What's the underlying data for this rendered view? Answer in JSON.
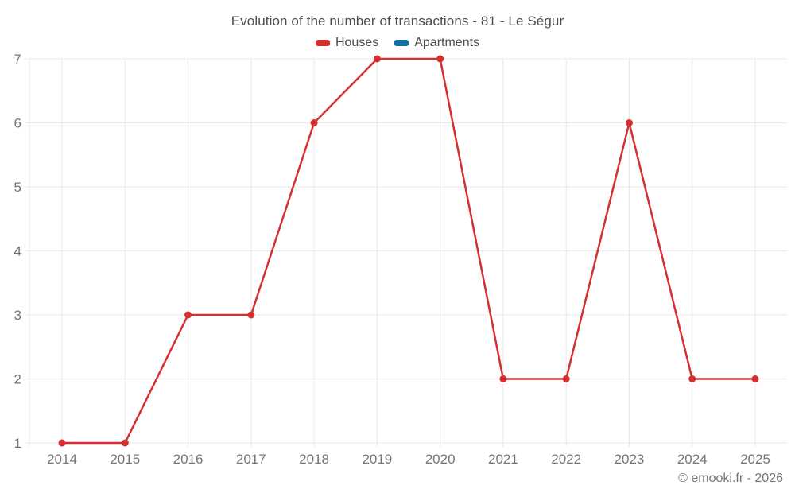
{
  "title": "Evolution of the number of transactions - 81 - Le Ségur",
  "watermark": "© emooki.fr - 2026",
  "colors": {
    "houses": "#d62f2f",
    "apartments": "#0e72a3",
    "grid": "#e8e8e8",
    "title_text": "#4c4c4c",
    "axis_text": "#757575",
    "background": "#ffffff"
  },
  "chart_data": {
    "type": "line",
    "title": "Evolution of the number of transactions - 81 - Le Ségur",
    "categories": [
      "2014",
      "2015",
      "2016",
      "2017",
      "2018",
      "2019",
      "2020",
      "2021",
      "2022",
      "2023",
      "2024",
      "2025"
    ],
    "series": [
      {
        "name": "Houses",
        "color": "#d62f2f",
        "values": [
          1,
          1,
          3,
          3,
          6,
          7,
          7,
          2,
          2,
          6,
          2,
          2
        ]
      },
      {
        "name": "Apartments",
        "color": "#0e72a3",
        "values": []
      }
    ],
    "xlabel": "",
    "ylabel": "",
    "ylim": [
      1,
      7
    ],
    "yticks": [
      1,
      2,
      3,
      4,
      5,
      6,
      7
    ],
    "grid": true,
    "legend_position": "top",
    "marker": "circle"
  }
}
